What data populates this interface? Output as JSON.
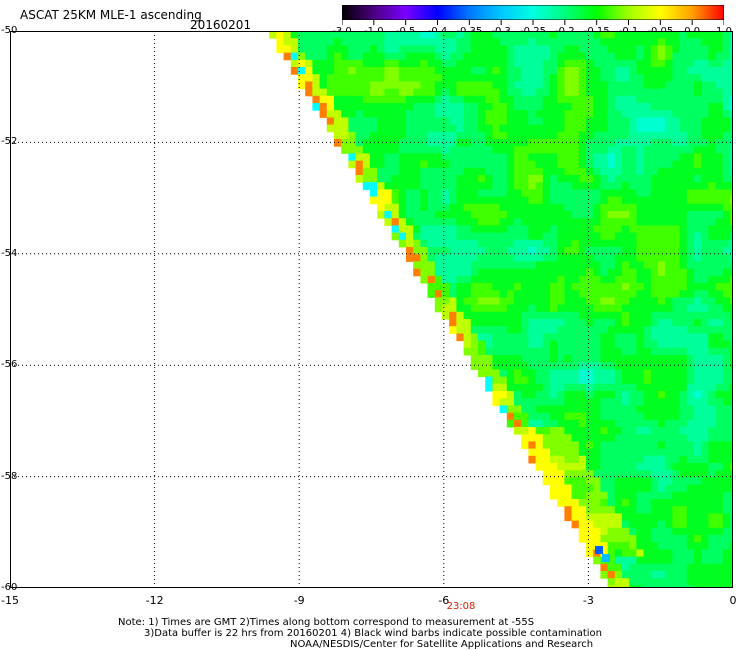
{
  "title": "ASCAT 25KM MLE-1 ascending",
  "date": "20160201",
  "colorbar": {
    "labels": [
      "-3.0",
      "-1.0",
      "-0.5",
      "-0.4",
      "-0.35",
      "-0.3",
      "-0.25",
      "-0.2",
      "-0.15",
      "-0.1",
      "-0.05",
      "0.0",
      "1.0"
    ],
    "colors": [
      "#000000",
      "#4b0082",
      "#7a00ff",
      "#0000ff",
      "#0078ff",
      "#00c8ff",
      "#00ffe0",
      "#00ff80",
      "#00ff00",
      "#a0ff00",
      "#ffff00",
      "#ffa000",
      "#ff0000"
    ]
  },
  "axes": {
    "x_ticks": [
      "-15",
      "-12",
      "-9",
      "-6",
      "-3",
      "0"
    ],
    "y_ticks": [
      "-50",
      "-52",
      "-54",
      "-56",
      "-58",
      "-60"
    ]
  },
  "time_label": "23:08",
  "notes": {
    "line1": "Note: 1) Times are GMT 2)Times along bottom correspond to measurement at -55S",
    "line2": "3)Data buffer is 22 hrs from 20160201 4) Black wind barbs indicate possible contamination",
    "line3": "NOAA/NESDIS/Center for Satellite Applications and Research"
  }
}
